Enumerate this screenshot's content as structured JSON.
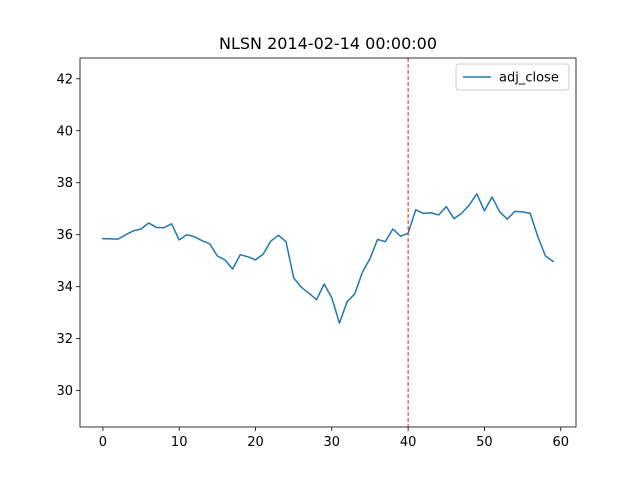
{
  "chart_data": {
    "type": "line",
    "title": "NLSN 2014-02-14 00:00:00",
    "xlabel": "",
    "ylabel": "",
    "xlim": [
      -3,
      62
    ],
    "ylim": [
      28.6,
      42.8
    ],
    "xticks": [
      0,
      10,
      20,
      30,
      40,
      50,
      60
    ],
    "yticks": [
      30,
      32,
      34,
      36,
      38,
      40,
      42
    ],
    "grid": false,
    "legend_position": "top-right",
    "vline": {
      "x": 40,
      "color": "#d62728",
      "style": "dashed"
    },
    "series": [
      {
        "name": "adj_close",
        "color": "#1f77b4",
        "x": [
          0,
          1,
          2,
          3,
          4,
          5,
          6,
          7,
          8,
          9,
          10,
          11,
          12,
          13,
          14,
          15,
          16,
          17,
          18,
          19,
          20,
          21,
          22,
          23,
          24,
          25,
          26,
          27,
          28,
          29,
          30,
          31,
          32,
          33,
          34,
          35,
          36,
          37,
          38,
          39,
          40,
          41,
          42,
          43,
          44,
          45,
          46,
          47,
          48,
          49,
          50,
          51,
          52,
          53,
          54,
          55,
          56,
          57,
          58,
          59
        ],
        "values": [
          35.85,
          35.84,
          35.83,
          36.0,
          36.15,
          36.22,
          36.45,
          36.28,
          36.27,
          36.42,
          35.8,
          36.0,
          35.92,
          35.77,
          35.65,
          35.18,
          35.03,
          34.68,
          35.23,
          35.15,
          35.03,
          35.25,
          35.75,
          35.98,
          35.73,
          34.34,
          33.98,
          33.75,
          33.5,
          34.1,
          33.57,
          32.6,
          33.42,
          33.72,
          34.55,
          35.08,
          35.82,
          35.73,
          36.22,
          35.94,
          36.06,
          36.96,
          36.82,
          36.84,
          36.76,
          37.08,
          36.62,
          36.82,
          37.14,
          37.57,
          36.92,
          37.45,
          36.88,
          36.6,
          36.9,
          36.88,
          36.82,
          35.92,
          35.18,
          34.97
        ]
      }
    ]
  }
}
